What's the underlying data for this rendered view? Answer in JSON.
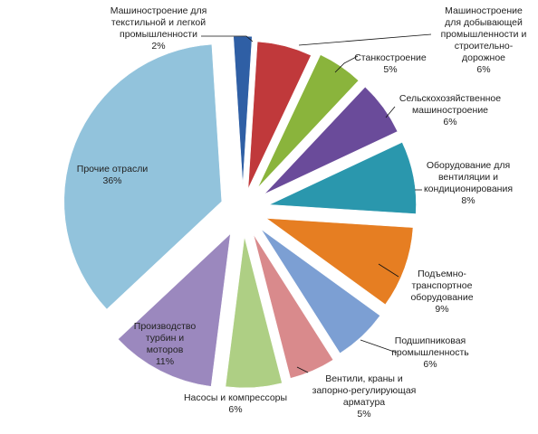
{
  "chart_data": {
    "type": "pie",
    "exploded": true,
    "title": "",
    "slices": [
      {
        "label": "Машиностроение для текстильной и легкой промышленности",
        "label_lines": [
          "Машиностроение для",
          "текстильной и легкой",
          "промышленности",
          "2%"
        ],
        "percent_label": "2%",
        "value": 2,
        "color": "#2f5fa5"
      },
      {
        "label": "Машиностроение для добывающей промышленности и строительно-дорожное",
        "label_lines": [
          "Машиностроение",
          "для добывающей",
          "промышленности и",
          "строительно-",
          "дорожное",
          "6%"
        ],
        "percent_label": "6%",
        "value": 6,
        "color": "#c0393b"
      },
      {
        "label": "Станкостроение",
        "label_lines": [
          "Станкостроение",
          "5%"
        ],
        "percent_label": "5%",
        "value": 5,
        "color": "#8ab43c"
      },
      {
        "label": "Сельскохозяйственное машиностроение",
        "label_lines": [
          "Сельскохозяйственное",
          "машиностроение",
          "6%"
        ],
        "percent_label": "6%",
        "value": 6,
        "color": "#6a4b9a"
      },
      {
        "label": "Оборудование для вентиляции и кондиционирования",
        "label_lines": [
          "Оборудование для",
          "вентиляции и",
          "кондиционирования",
          "8%"
        ],
        "percent_label": "8%",
        "value": 8,
        "color": "#2a97ad"
      },
      {
        "label": "Подъемно-транспортное оборудование",
        "label_lines": [
          "Подъемно-",
          "транспортное",
          "оборудование",
          "9%"
        ],
        "percent_label": "9%",
        "value": 9,
        "color": "#e67e22"
      },
      {
        "label": "Подшипниковая промышленность",
        "label_lines": [
          "Подшипниковая",
          "промышленность",
          "6%"
        ],
        "percent_label": "6%",
        "value": 6,
        "color": "#7c9fd3"
      },
      {
        "label": "Вентили, краны и запорно-регулирующая арматура",
        "label_lines": [
          "Вентили, краны и",
          "запорно-регулирующая",
          "арматура",
          "5%"
        ],
        "percent_label": "5%",
        "value": 5,
        "color": "#d98a8c"
      },
      {
        "label": "Насосы и компрессоры",
        "label_lines": [
          "Насосы и компрессоры",
          "6%"
        ],
        "percent_label": "6%",
        "value": 6,
        "color": "#aecf84"
      },
      {
        "label": "Производство турбин и моторов",
        "label_lines": [
          "Производство",
          "турбин и",
          "моторов",
          "11%"
        ],
        "percent_label": "11%",
        "value": 11,
        "color": "#9b88be"
      },
      {
        "label": "Прочие отрасли",
        "label_lines": [
          "Прочие отрасли",
          "36%"
        ],
        "percent_label": "36%",
        "value": 36,
        "color": "#92c3dc"
      }
    ]
  }
}
